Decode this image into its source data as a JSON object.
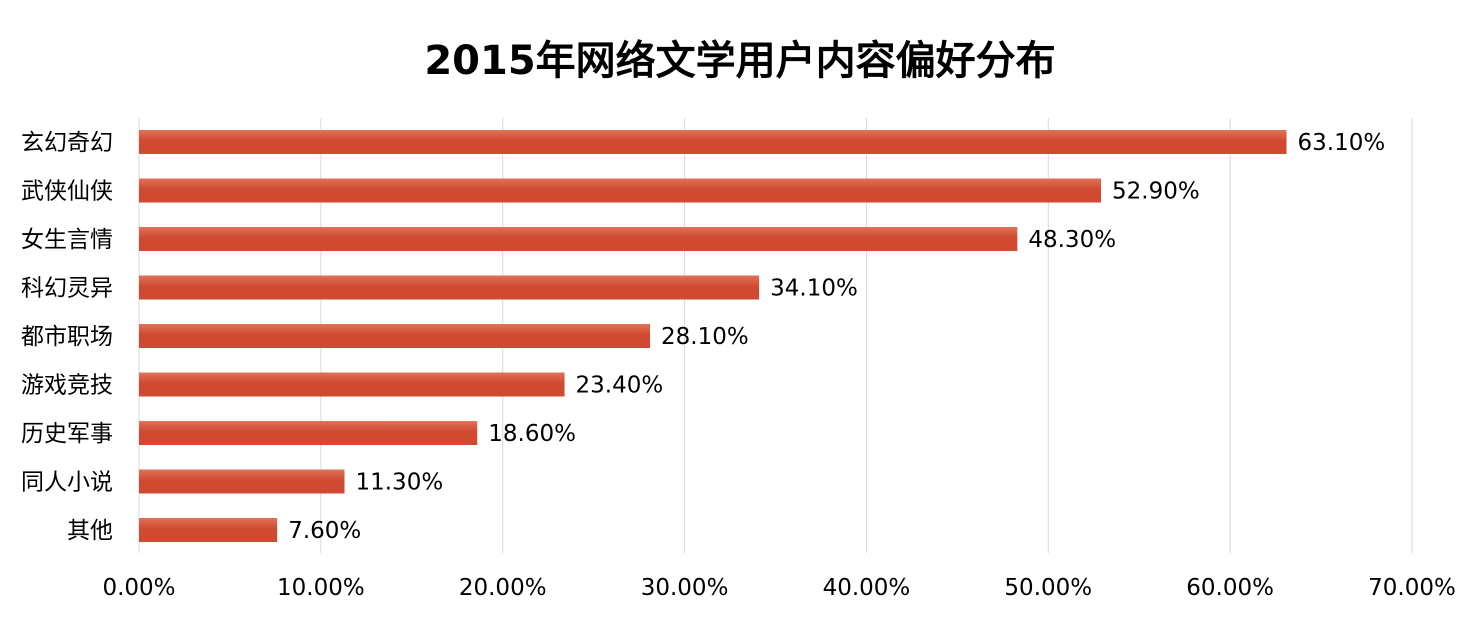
{
  "chart_data": {
    "type": "bar",
    "orientation": "horizontal",
    "title": "2015年网络文学用户内容偏好分布",
    "categories": [
      "玄幻奇幻",
      "武侠仙侠",
      "女生言情",
      "科幻灵异",
      "都市职场",
      "游戏竞技",
      "历史军事",
      "同人小说",
      "其他"
    ],
    "values": [
      63.1,
      52.9,
      48.3,
      34.1,
      28.1,
      23.4,
      18.6,
      11.3,
      7.6
    ],
    "value_labels": [
      "63.10%",
      "52.90%",
      "48.30%",
      "34.10%",
      "28.10%",
      "23.40%",
      "18.60%",
      "11.30%",
      "7.60%"
    ],
    "xlim": [
      0,
      70
    ],
    "x_ticks": [
      0,
      10,
      20,
      30,
      40,
      50,
      60,
      70
    ],
    "x_tick_labels": [
      "0.00%",
      "10.00%",
      "20.00%",
      "30.00%",
      "40.00%",
      "50.00%",
      "60.00%",
      "70.00%"
    ],
    "xlabel": "",
    "ylabel": "",
    "grid": "vertical",
    "legend": "none",
    "colors": {
      "bar": "#cf4a30",
      "bar_light": "#e0735a",
      "grid": "#d9d9d9",
      "text": "#000000"
    }
  }
}
